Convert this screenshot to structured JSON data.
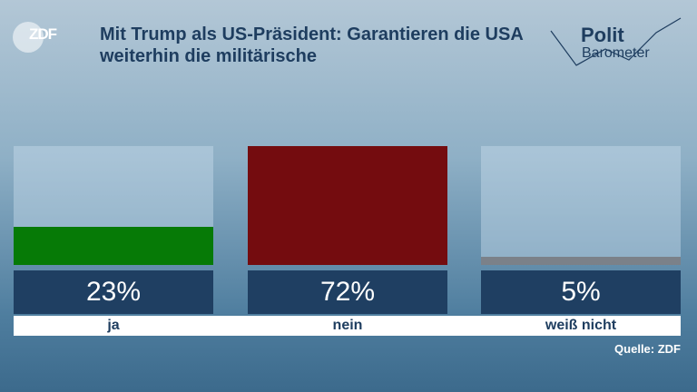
{
  "header": {
    "broadcaster": "ZDF",
    "program": [
      "Polit",
      "Barometer"
    ]
  },
  "chart_data": {
    "type": "bar",
    "title": "Mit Trump als US-Präsident: Garantieren die USA weiterhin die militärische",
    "categories": [
      "ja",
      "nein",
      "weiß nicht"
    ],
    "values": [
      23,
      72,
      5
    ],
    "value_labels": [
      "23%",
      "72%",
      "5%"
    ],
    "colors": [
      "#067a06",
      "#740c0f",
      "#7b8189"
    ],
    "ylim": [
      0,
      72
    ],
    "source": "Quelle: ZDF"
  }
}
